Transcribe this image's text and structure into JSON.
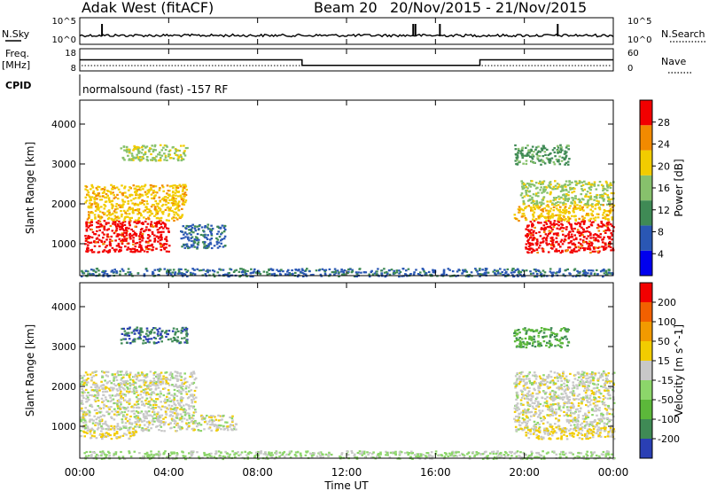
{
  "header": {
    "station": "Adak West (fitACF)",
    "beam": "Beam 20",
    "date_range": "20/Nov/2015 - 21/Nov/2015"
  },
  "top_panels": {
    "nsky_label": "N.Sky",
    "nsearch_label": "N.Search",
    "freq_label_1": "Freq.",
    "freq_label_2": "[MHz]",
    "nave_label": "Nave",
    "cpid_label": "CPID",
    "cpid_text": "normalsound (fast) -157 RF",
    "noise_ticks_left": [
      "10^5",
      "10^0"
    ],
    "noise_ticks_right": [
      "10^5",
      "10^0"
    ],
    "freq_ticks_left": [
      "18",
      "8"
    ],
    "nave_ticks_right": [
      "60",
      "0"
    ],
    "freq_steps": [
      {
        "t0": 0,
        "t1": 10,
        "value": 13
      },
      {
        "t0": 10,
        "t1": 18,
        "value": 10.5
      },
      {
        "t0": 18,
        "t1": 24,
        "value": 13
      }
    ],
    "noise_spikes_h": [
      15.0,
      15.1,
      16.2,
      21.5,
      1.0
    ]
  },
  "power_panel": {
    "ylabel": "Slant Range [km]",
    "colorbar_title": "Power [dB]",
    "colorbar_ticks": [
      "28",
      "24",
      "20",
      "16",
      "12",
      "8",
      "4"
    ],
    "colors": [
      "#0000ee",
      "#2a57b4",
      "#3f8a55",
      "#87c16c",
      "#f2cc00",
      "#f28a00",
      "#f20000"
    ]
  },
  "velocity_panel": {
    "ylabel": "Slant Range [km]",
    "colorbar_title": "Velocity [m s^-1]",
    "colorbar_ticks": [
      "200",
      "100",
      "50",
      "15",
      "-15",
      "-50",
      "-100",
      "-200"
    ],
    "colors": [
      "#2a3fb4",
      "#3f8a55",
      "#5cb83a",
      "#8cd66a",
      "#c8c8c8",
      "#f2cc00",
      "#f29a00",
      "#f26000",
      "#f20000"
    ]
  },
  "x_axis": {
    "title": "Time UT",
    "ticks": [
      "00:00",
      "04:00",
      "08:00",
      "12:00",
      "16:00",
      "20:00",
      "00:00"
    ]
  },
  "chart_data": [
    {
      "type": "heatmap",
      "title": "Power [dB]",
      "xlabel": "Time UT",
      "ylabel": "Slant Range [km]",
      "xlim": [
        0,
        24
      ],
      "ylim": [
        200,
        4600
      ],
      "y_ticks": [
        1000,
        2000,
        3000,
        4000
      ],
      "clim": [
        0,
        30
      ],
      "regions": [
        {
          "t0": 0.2,
          "t1": 4.0,
          "r0": 800,
          "r1": 1600,
          "value": 28
        },
        {
          "t0": 0.3,
          "t1": 4.6,
          "r0": 1600,
          "r1": 2000,
          "value": 20
        },
        {
          "t0": 0.2,
          "t1": 4.8,
          "r0": 2000,
          "r1": 2500,
          "value": 20
        },
        {
          "t0": 1.8,
          "t1": 4.8,
          "r0": 3100,
          "r1": 3500,
          "value": 16
        },
        {
          "t0": 4.5,
          "t1": 6.5,
          "r0": 900,
          "r1": 1500,
          "value": 8
        },
        {
          "t0": 20.0,
          "t1": 24.0,
          "r0": 800,
          "r1": 1600,
          "value": 28
        },
        {
          "t0": 19.5,
          "t1": 24.0,
          "r0": 1600,
          "r1": 2000,
          "value": 20
        },
        {
          "t0": 19.8,
          "t1": 24.0,
          "r0": 2000,
          "r1": 2600,
          "value": 16
        },
        {
          "t0": 19.5,
          "t1": 22.0,
          "r0": 3000,
          "r1": 3500,
          "value": 12
        },
        {
          "t0": 0.0,
          "t1": 24.0,
          "r0": 200,
          "r1": 400,
          "value": 8
        }
      ]
    },
    {
      "type": "heatmap",
      "title": "Velocity [m s^-1]",
      "xlabel": "Time UT",
      "ylabel": "Slant Range [km]",
      "xlim": [
        0,
        24
      ],
      "ylim": [
        200,
        4600
      ],
      "y_ticks": [
        1000,
        2000,
        3000,
        4000
      ],
      "clim": [
        -200,
        200
      ],
      "regions": [
        {
          "t0": 0.0,
          "t1": 5.2,
          "r0": 900,
          "r1": 2400,
          "value": 0
        },
        {
          "t0": 0.0,
          "t1": 2.5,
          "r0": 700,
          "r1": 900,
          "value": 30
        },
        {
          "t0": 1.8,
          "t1": 4.8,
          "r0": 3100,
          "r1": 3500,
          "value": -150
        },
        {
          "t0": 5.0,
          "t1": 7.0,
          "r0": 900,
          "r1": 1300,
          "value": 0
        },
        {
          "t0": 19.5,
          "t1": 24.0,
          "r0": 900,
          "r1": 2400,
          "value": 0
        },
        {
          "t0": 20.0,
          "t1": 24.0,
          "r0": 700,
          "r1": 1000,
          "value": 30
        },
        {
          "t0": 19.5,
          "t1": 22.0,
          "r0": 3000,
          "r1": 3500,
          "value": -100
        },
        {
          "t0": 0.0,
          "t1": 24.0,
          "r0": 200,
          "r1": 400,
          "value": -30
        }
      ]
    }
  ]
}
